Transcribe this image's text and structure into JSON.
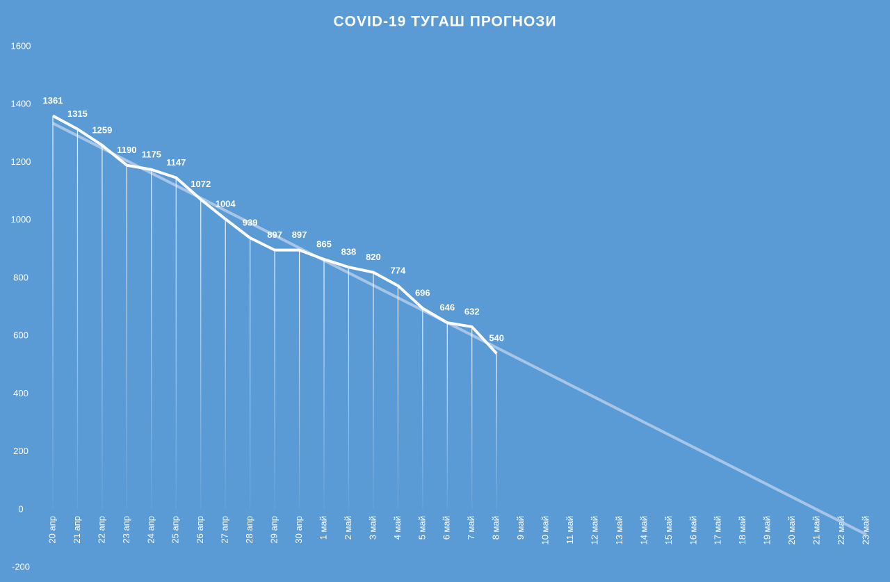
{
  "chart_data": {
    "type": "line",
    "title": "COVID-19 ТУГАШ ПРОГНОЗИ",
    "categories": [
      "20 апр",
      "21 апр",
      "22 апр",
      "23 апр",
      "24 апр",
      "25 апр",
      "26 апр",
      "27 апр",
      "28 апр",
      "29 апр",
      "30 апр",
      "1 май",
      "2 май",
      "3 май",
      "4 май",
      "5 май",
      "6 май",
      "7 май",
      "8 май",
      "9 май",
      "10 май",
      "11 май",
      "12 май",
      "13 май",
      "14 май",
      "15 май",
      "16 май",
      "17 май",
      "18 май",
      "19 май",
      "20 май",
      "21 май",
      "22 май",
      "23 май"
    ],
    "values": [
      1361,
      1315,
      1259,
      1190,
      1175,
      1147,
      1072,
      1004,
      939,
      897,
      897,
      865,
      838,
      820,
      774,
      696,
      646,
      632,
      540,
      null,
      null,
      null,
      null,
      null,
      null,
      null,
      null,
      null,
      null,
      null,
      null,
      null,
      null,
      null
    ],
    "color": "#ffffff",
    "trend": {
      "start": 1335,
      "end": -86,
      "color": "#b4cdea"
    },
    "ylim": [
      -200,
      1600
    ],
    "yticks": [
      -200,
      0,
      200,
      400,
      600,
      800,
      1000,
      1200,
      1400,
      1600
    ],
    "background": "#5b9bd5"
  }
}
